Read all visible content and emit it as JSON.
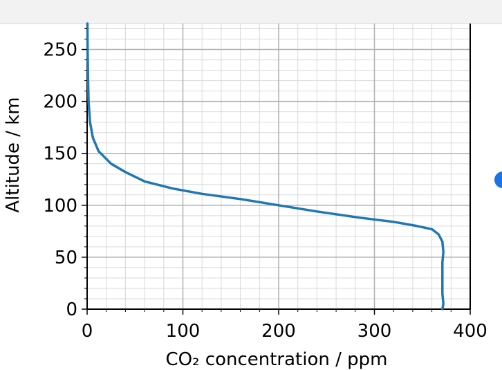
{
  "chart_data": {
    "type": "line",
    "xlabel": "CO₂ concentration / ppm",
    "ylabel": "Altitude / km",
    "xlim": [
      0,
      400
    ],
    "ylim": [
      0,
      275
    ],
    "grid": true,
    "minor_grid": true,
    "xticks": [
      "0",
      "100",
      "200",
      "300",
      "400"
    ],
    "yticks": [
      "0",
      "50",
      "100",
      "150",
      "200",
      "250"
    ],
    "series": [
      {
        "color": "#1f77b4",
        "x": [
          371,
          372,
          371,
          371,
          371,
          372,
          371,
          367,
          360,
          345,
          320,
          285,
          240,
          200,
          160,
          120,
          90,
          60,
          40,
          25,
          12,
          6,
          3,
          1.5,
          1,
          0.5,
          0.3
        ],
        "y": [
          0,
          5,
          15,
          30,
          45,
          55,
          65,
          72,
          77,
          80,
          84,
          88,
          94,
          100,
          106,
          111,
          116,
          123,
          132,
          140,
          152,
          165,
          180,
          200,
          220,
          250,
          275
        ]
      }
    ]
  }
}
